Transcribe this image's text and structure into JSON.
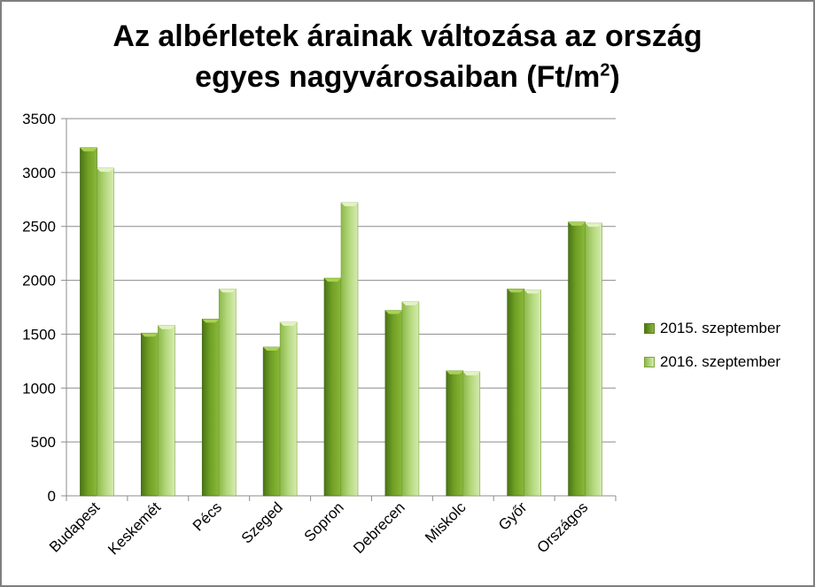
{
  "chart_data": {
    "type": "bar",
    "title_line1": "Az albérletek árainak változása az ország",
    "title_line2": "egyes nagyvárosaiban (Ft/m",
    "title_sup": "2",
    "title_end": ")",
    "categories": [
      "Budapest",
      "Keskemét",
      "Pécs",
      "Szeged",
      "Sopron",
      "Debrecen",
      "Miskolc",
      "Győr",
      "Országos"
    ],
    "series": [
      {
        "name": "2015. szeptember",
        "values": [
          3230,
          1510,
          1640,
          1380,
          2020,
          1720,
          1160,
          1920,
          2540
        ]
      },
      {
        "name": "2016. szeptember",
        "values": [
          3040,
          1580,
          1920,
          1610,
          2720,
          1800,
          1150,
          1910,
          2530
        ]
      }
    ],
    "ylim": [
      0,
      3500
    ],
    "yticks": [
      0,
      500,
      1000,
      1500,
      2000,
      2500,
      3000,
      3500
    ],
    "grid": true,
    "legend_position": "right",
    "colors": {
      "s1_base": "#5f8f1c",
      "s1_light": "#93c13c",
      "s1_dark": "#3e6412",
      "s2_base": "#9bc75a",
      "s2_light": "#cde6a3",
      "s2_dark": "#6f9a34"
    }
  }
}
